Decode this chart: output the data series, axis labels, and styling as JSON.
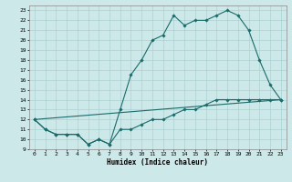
{
  "title": "",
  "xlabel": "Humidex (Indice chaleur)",
  "xlim": [
    -0.5,
    23.5
  ],
  "ylim": [
    9,
    23.5
  ],
  "yticks": [
    9,
    10,
    11,
    12,
    13,
    14,
    15,
    16,
    17,
    18,
    19,
    20,
    21,
    22,
    23
  ],
  "xticks": [
    0,
    1,
    2,
    3,
    4,
    5,
    6,
    7,
    8,
    9,
    10,
    11,
    12,
    13,
    14,
    15,
    16,
    17,
    18,
    19,
    20,
    21,
    22,
    23
  ],
  "bg_color": "#cce8e8",
  "line_color": "#1a6b6b",
  "line1_x": [
    0,
    1,
    2,
    3,
    4,
    5,
    6,
    7,
    8,
    9,
    10,
    11,
    12,
    13,
    14,
    15,
    16,
    17,
    18,
    19,
    20,
    21,
    22,
    23
  ],
  "line1_y": [
    12,
    11,
    10.5,
    10.5,
    10.5,
    9.5,
    10,
    9.5,
    13,
    16.5,
    18,
    20,
    20.5,
    22.5,
    21.5,
    22,
    22,
    22.5,
    23,
    22.5,
    21,
    18,
    15.5,
    14
  ],
  "line2_x": [
    0,
    1,
    2,
    3,
    4,
    5,
    6,
    7,
    8,
    9,
    10,
    11,
    12,
    13,
    14,
    15,
    16,
    17,
    18,
    19,
    20,
    21,
    22,
    23
  ],
  "line2_y": [
    12,
    11,
    10.5,
    10.5,
    10.5,
    9.5,
    10,
    9.5,
    11,
    11,
    11.5,
    12,
    12,
    12.5,
    13,
    13,
    13.5,
    14,
    14,
    14,
    14,
    14,
    14,
    14
  ],
  "line3_x": [
    0,
    23
  ],
  "line3_y": [
    12,
    14
  ],
  "tick_fontsize": 4.5,
  "xlabel_fontsize": 5.5
}
